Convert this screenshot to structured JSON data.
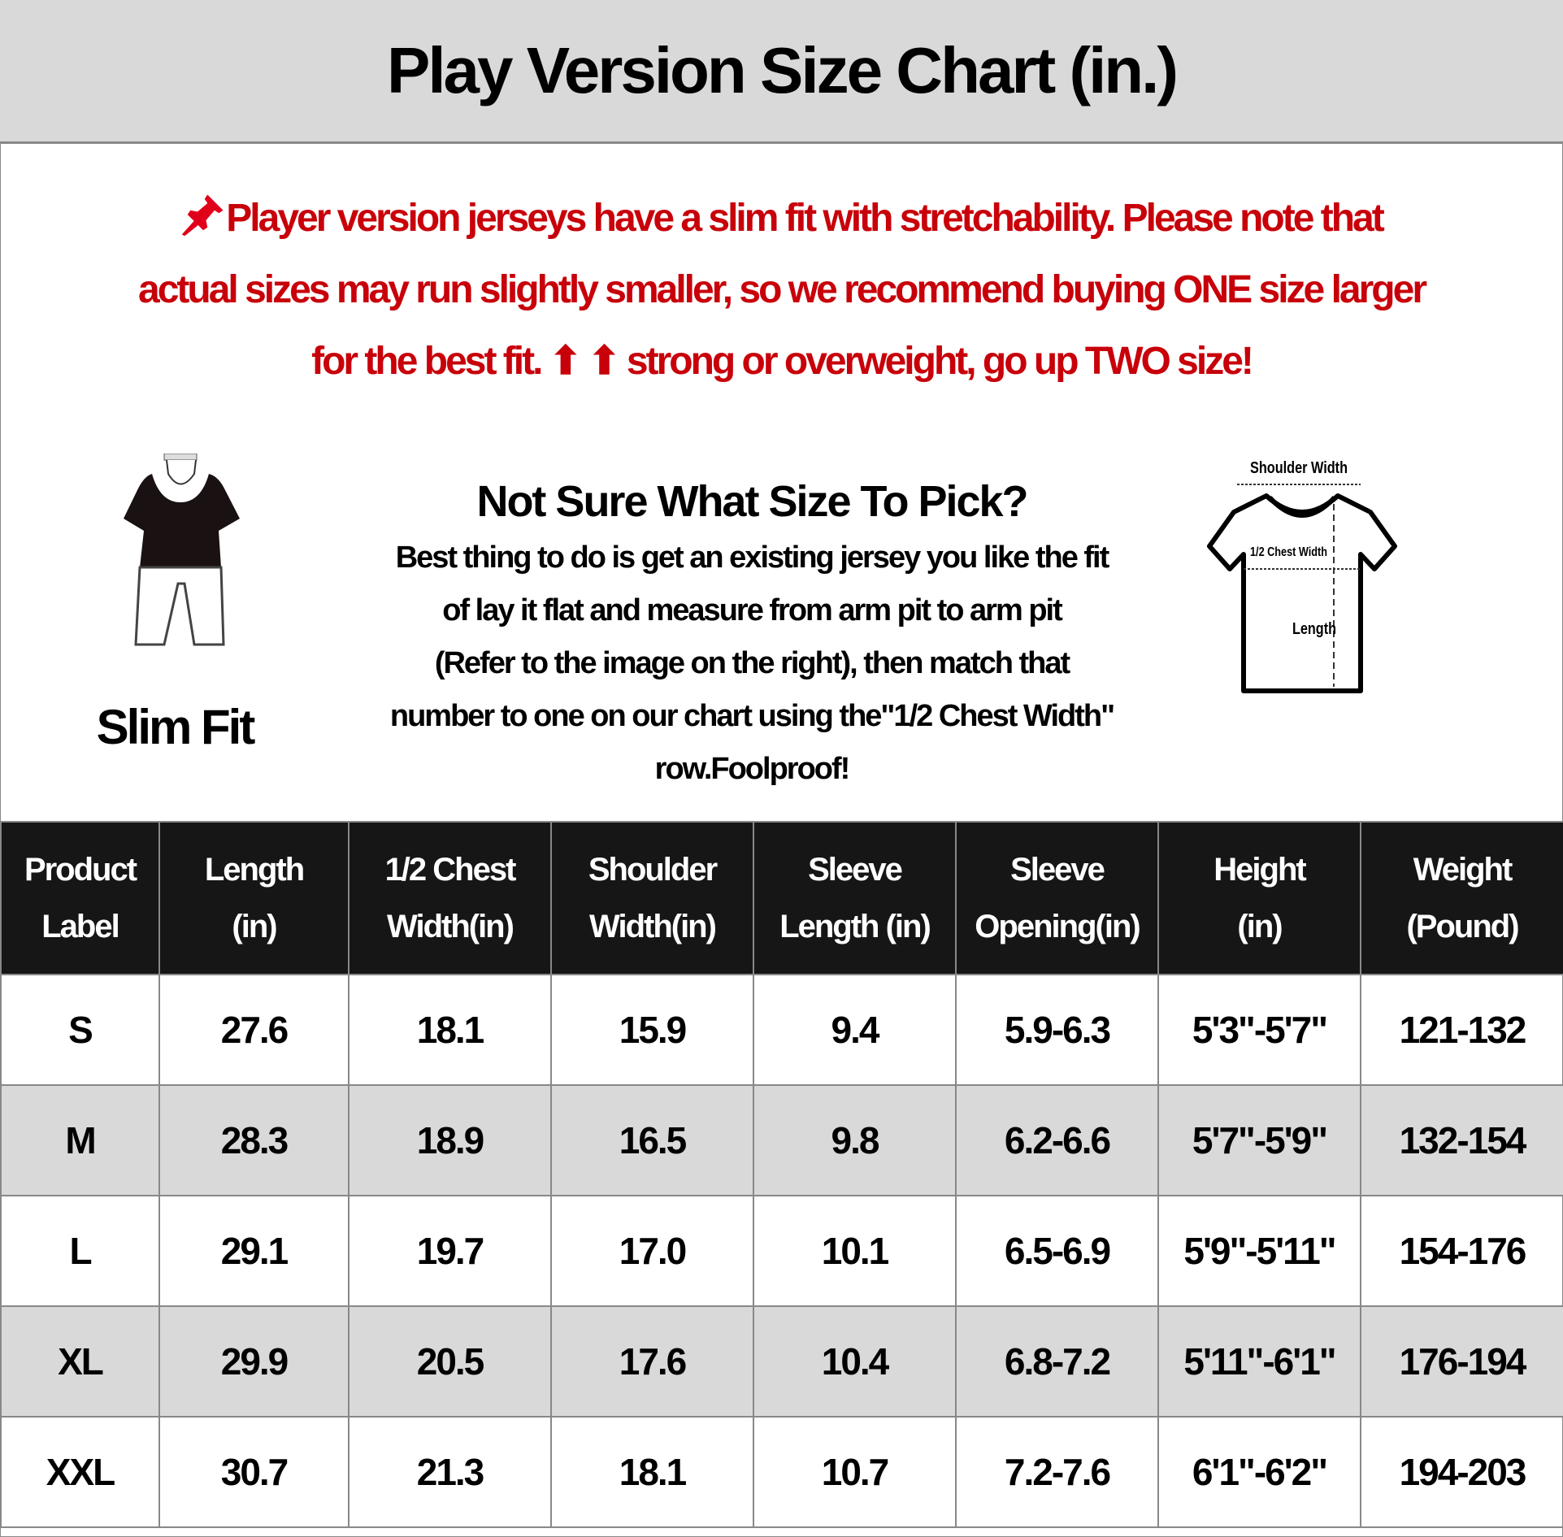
{
  "title": "Play Version Size Chart (in.)",
  "notice": {
    "icon": "pushpin-icon",
    "color": "#c8000a",
    "lines": [
      "Player version jerseys have a slim fit with stretchability. Please note that",
      "actual sizes may run slightly smaller, so we recommend buying ONE size larger",
      "for the best fit. ⬆ ⬆ strong or overweight, go up TWO size!"
    ]
  },
  "fit": {
    "label": "Slim Fit",
    "icon": "mannequin-icon"
  },
  "help": {
    "heading": "Not Sure What Size To Pick?",
    "lines": [
      "Best thing to do is get an existing jersey you like the fit",
      "of lay it flat and measure from arm pit to arm pit",
      "(Refer to the image on the right), then match that",
      "number to one on our chart using the\"1/2 Chest Width\"",
      "row.Foolproof!"
    ]
  },
  "diagram": {
    "icon": "tshirt-measurement-icon",
    "shoulder_label": "Shoulder Width",
    "chest_label": "1/2 Chest Width",
    "length_label": "Length"
  },
  "table": {
    "headers": [
      [
        "Product",
        "Label"
      ],
      [
        "Length",
        "(in)"
      ],
      [
        "1/2 Chest",
        "Width(in)"
      ],
      [
        "Shoulder",
        "Width(in)"
      ],
      [
        "Sleeve",
        "Length (in)"
      ],
      [
        "Sleeve",
        "Opening(in)"
      ],
      [
        "Height",
        "(in)"
      ],
      [
        "Weight",
        "(Pound)"
      ]
    ],
    "rows": [
      [
        "S",
        "27.6",
        "18.1",
        "15.9",
        "9.4",
        "5.9-6.3",
        "5'3\"-5'7\"",
        "121-132"
      ],
      [
        "M",
        "28.3",
        "18.9",
        "16.5",
        "9.8",
        "6.2-6.6",
        "5'7\"-5'9\"",
        "132-154"
      ],
      [
        "L",
        "29.1",
        "19.7",
        "17.0",
        "10.1",
        "6.5-6.9",
        "5'9\"-5'11\"",
        "154-176"
      ],
      [
        "XL",
        "29.9",
        "20.5",
        "17.6",
        "10.4",
        "6.8-7.2",
        "5'11\"-6'1\"",
        "176-194"
      ],
      [
        "XXL",
        "30.7",
        "21.3",
        "18.1",
        "10.7",
        "7.2-7.6",
        "6'1\"-6'2\"",
        "194-203"
      ]
    ]
  }
}
